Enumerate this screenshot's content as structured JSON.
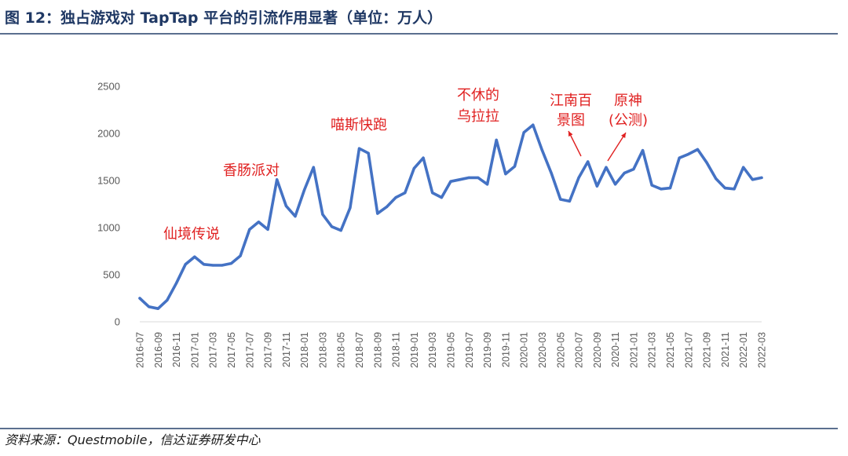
{
  "header": {
    "title": "图 12：独占游戏对 TapTap 平台的引流作用显著（单位：万人）"
  },
  "footer": {
    "source": "资料来源：Questmobile，信达证券研发中心"
  },
  "chart_data": {
    "type": "line",
    "title": "",
    "xlabel": "",
    "ylabel": "",
    "ylim": [
      0,
      2500
    ],
    "yticks": [
      0,
      500,
      1000,
      1500,
      2000,
      2500
    ],
    "grid": false,
    "line_color": "#4472c4",
    "annotation_color": "#e02020",
    "x": [
      "2016-07",
      "2016-08",
      "2016-09",
      "2016-10",
      "2016-11",
      "2016-12",
      "2017-01",
      "2017-02",
      "2017-03",
      "2017-04",
      "2017-05",
      "2017-06",
      "2017-07",
      "2017-08",
      "2017-09",
      "2017-10",
      "2017-11",
      "2017-12",
      "2018-01",
      "2018-02",
      "2018-03",
      "2018-04",
      "2018-05",
      "2018-06",
      "2018-07",
      "2018-08",
      "2018-09",
      "2018-10",
      "2018-11",
      "2018-12",
      "2019-01",
      "2019-02",
      "2019-03",
      "2019-04",
      "2019-05",
      "2019-06",
      "2019-07",
      "2019-08",
      "2019-09",
      "2019-10",
      "2019-11",
      "2019-12",
      "2020-01",
      "2020-02",
      "2020-03",
      "2020-04",
      "2020-05",
      "2020-06",
      "2020-07",
      "2020-08",
      "2020-09",
      "2020-10",
      "2020-11",
      "2020-12",
      "2021-01",
      "2021-02",
      "2021-03",
      "2021-04",
      "2021-05",
      "2021-06",
      "2021-07",
      "2021-08",
      "2021-09",
      "2021-10",
      "2021-11",
      "2021-12",
      "2022-01",
      "2022-02",
      "2022-03"
    ],
    "xtick_labels": [
      "2016-07",
      "2016-09",
      "2016-11",
      "2017-01",
      "2017-03",
      "2017-05",
      "2017-07",
      "2017-09",
      "2017-11",
      "2018-01",
      "2018-03",
      "2018-05",
      "2018-07",
      "2018-09",
      "2018-11",
      "2019-01",
      "2019-03",
      "2019-05",
      "2019-07",
      "2019-09",
      "2019-11",
      "2020-01",
      "2020-03",
      "2020-05",
      "2020-07",
      "2020-09",
      "2020-11",
      "2021-01",
      "2021-03",
      "2021-05",
      "2021-07",
      "2021-09",
      "2021-11",
      "2022-01",
      "2022-03"
    ],
    "series": [
      {
        "values": [
          250,
          160,
          140,
          230,
          410,
          610,
          690,
          610,
          600,
          600,
          620,
          700,
          980,
          1060,
          980,
          1510,
          1230,
          1120,
          1400,
          1640,
          1140,
          1010,
          970,
          1210,
          1840,
          1790,
          1150,
          1220,
          1320,
          1370,
          1630,
          1740,
          1370,
          1320,
          1490,
          1510,
          1530,
          1530,
          1460,
          1930,
          1570,
          1650,
          2010,
          2090,
          1820,
          1580,
          1300,
          1280,
          1530,
          1700,
          1440,
          1640,
          1460,
          1580,
          1620,
          1820,
          1450,
          1410,
          1420,
          1740,
          1780,
          1830,
          1690,
          1520,
          1420,
          1410,
          1640,
          1510,
          1530
        ]
      }
    ],
    "annotations": [
      {
        "lines": [
          "仙境传说"
        ],
        "x": "2016-12"
      },
      {
        "lines": [
          "香肠派对"
        ],
        "x": "2017-10"
      },
      {
        "lines": [
          "喵斯快跑"
        ],
        "x": "2018-07"
      },
      {
        "lines": [
          "不休的",
          "乌拉拉"
        ],
        "x": "2019-09"
      },
      {
        "lines": [
          "江南百",
          "景图"
        ],
        "x": "2020-07",
        "arrow": true
      },
      {
        "lines": [
          "原神",
          "(公测)"
        ],
        "x": "2020-10",
        "arrow": true
      }
    ]
  }
}
